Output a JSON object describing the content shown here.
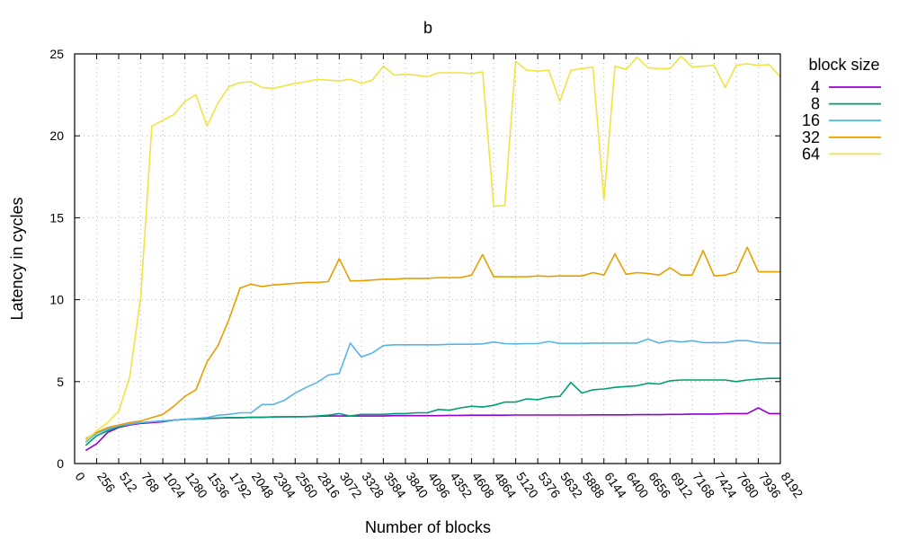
{
  "chart_data": {
    "type": "line",
    "title": "b",
    "xlabel": "Number of blocks",
    "ylabel": "Latency in cycles",
    "xlim": [
      0,
      8192
    ],
    "ylim": [
      0,
      25
    ],
    "x_ticks": [
      "0",
      "256",
      "512",
      "768",
      "1024",
      "1280",
      "1536",
      "1792",
      "2048",
      "2304",
      "2560",
      "2816",
      "3072",
      "3328",
      "3584",
      "3840",
      "4096",
      "4352",
      "4608",
      "4864",
      "5120",
      "5376",
      "5632",
      "5888",
      "6144",
      "6400",
      "6656",
      "6912",
      "7168",
      "7424",
      "7680",
      "7936",
      "8192"
    ],
    "y_ticks": [
      "0",
      "5",
      "10",
      "15",
      "20",
      "25"
    ],
    "grid": true,
    "legend_title": "block size",
    "legend_position": "outside-top-right",
    "x": [
      128,
      256,
      384,
      512,
      640,
      768,
      896,
      1024,
      1152,
      1280,
      1408,
      1536,
      1664,
      1792,
      1920,
      2048,
      2176,
      2304,
      2432,
      2560,
      2688,
      2816,
      2944,
      3072,
      3200,
      3328,
      3456,
      3584,
      3712,
      3840,
      3968,
      4096,
      4224,
      4352,
      4480,
      4608,
      4736,
      4864,
      4992,
      5120,
      5248,
      5376,
      5504,
      5632,
      5760,
      5888,
      6016,
      6144,
      6272,
      6400,
      6528,
      6656,
      6784,
      6912,
      7040,
      7168,
      7296,
      7424,
      7552,
      7680,
      7808,
      7936,
      8064,
      8192
    ],
    "series": [
      {
        "name": "4",
        "color": "#9400d3",
        "values": [
          0.8,
          1.2,
          1.9,
          2.2,
          2.35,
          2.45,
          2.5,
          2.55,
          2.65,
          2.7,
          2.72,
          2.75,
          2.77,
          2.8,
          2.8,
          2.82,
          2.82,
          2.85,
          2.85,
          2.86,
          2.86,
          2.88,
          2.9,
          2.9,
          2.9,
          2.9,
          2.9,
          2.9,
          2.92,
          2.92,
          2.92,
          2.92,
          2.92,
          2.94,
          2.94,
          2.95,
          2.95,
          2.95,
          2.95,
          2.96,
          2.96,
          2.96,
          2.96,
          2.96,
          2.96,
          2.96,
          2.97,
          2.97,
          2.97,
          2.97,
          2.98,
          2.98,
          2.98,
          3.0,
          3.0,
          3.02,
          3.02,
          3.02,
          3.05,
          3.05,
          3.05,
          3.4,
          3.05,
          3.05
        ]
      },
      {
        "name": "8",
        "color": "#009e73",
        "values": [
          1.1,
          1.7,
          2.0,
          2.25,
          2.4,
          2.5,
          2.55,
          2.6,
          2.65,
          2.7,
          2.72,
          2.75,
          2.78,
          2.8,
          2.8,
          2.82,
          2.82,
          2.84,
          2.85,
          2.85,
          2.86,
          2.9,
          2.95,
          3.05,
          2.9,
          3.0,
          3.0,
          3.0,
          3.05,
          3.05,
          3.1,
          3.1,
          3.3,
          3.25,
          3.4,
          3.5,
          3.45,
          3.55,
          3.75,
          3.75,
          3.95,
          3.9,
          4.05,
          4.1,
          4.95,
          4.3,
          4.5,
          4.55,
          4.65,
          4.7,
          4.75,
          4.9,
          4.85,
          5.05,
          5.1,
          5.1,
          5.1,
          5.1,
          5.1,
          5.0,
          5.1,
          5.15,
          5.2,
          5.2
        ]
      },
      {
        "name": "16",
        "color": "#56b4e9",
        "values": [
          1.3,
          1.85,
          2.1,
          2.3,
          2.4,
          2.5,
          2.55,
          2.6,
          2.65,
          2.7,
          2.75,
          2.8,
          2.95,
          3.0,
          3.1,
          3.1,
          3.6,
          3.6,
          3.85,
          4.3,
          4.65,
          4.95,
          5.4,
          5.5,
          7.35,
          6.5,
          6.75,
          7.2,
          7.25,
          7.25,
          7.25,
          7.25,
          7.25,
          7.28,
          7.28,
          7.28,
          7.3,
          7.42,
          7.32,
          7.3,
          7.32,
          7.32,
          7.45,
          7.33,
          7.33,
          7.33,
          7.35,
          7.35,
          7.35,
          7.35,
          7.35,
          7.6,
          7.35,
          7.5,
          7.42,
          7.5,
          7.38,
          7.38,
          7.38,
          7.5,
          7.5,
          7.38,
          7.35,
          7.35
        ]
      },
      {
        "name": "32",
        "color": "#e69f00",
        "values": [
          1.5,
          1.9,
          2.2,
          2.35,
          2.5,
          2.6,
          2.8,
          3.0,
          3.5,
          4.1,
          4.5,
          6.2,
          7.2,
          8.8,
          10.7,
          10.95,
          10.8,
          10.9,
          10.95,
          11.0,
          11.05,
          11.05,
          11.1,
          12.5,
          11.15,
          11.15,
          11.2,
          11.25,
          11.25,
          11.3,
          11.3,
          11.3,
          11.35,
          11.35,
          11.35,
          11.5,
          12.75,
          11.4,
          11.4,
          11.4,
          11.4,
          11.45,
          11.42,
          11.45,
          11.45,
          11.45,
          11.65,
          11.5,
          12.8,
          11.55,
          11.65,
          11.6,
          11.5,
          11.95,
          11.5,
          11.5,
          13.0,
          11.45,
          11.5,
          11.7,
          13.2,
          11.7,
          11.7,
          11.7
        ]
      },
      {
        "name": "64",
        "color": "#f0e442",
        "values": [
          1.4,
          2.0,
          2.5,
          3.2,
          5.3,
          10.2,
          20.6,
          20.95,
          21.3,
          22.1,
          22.5,
          20.6,
          22.0,
          23.0,
          23.25,
          23.3,
          22.95,
          22.9,
          23.05,
          23.2,
          23.3,
          23.45,
          23.4,
          23.35,
          23.45,
          23.2,
          23.4,
          24.25,
          23.7,
          23.75,
          23.7,
          23.6,
          23.85,
          23.85,
          23.85,
          23.8,
          23.9,
          15.7,
          15.75,
          24.55,
          24.0,
          23.95,
          24.0,
          22.1,
          24.0,
          24.1,
          24.2,
          16.1,
          24.25,
          24.05,
          24.8,
          24.15,
          24.1,
          24.1,
          24.85,
          24.2,
          24.25,
          24.3,
          22.95,
          24.3,
          24.4,
          24.3,
          24.35,
          23.6
        ]
      }
    ]
  }
}
